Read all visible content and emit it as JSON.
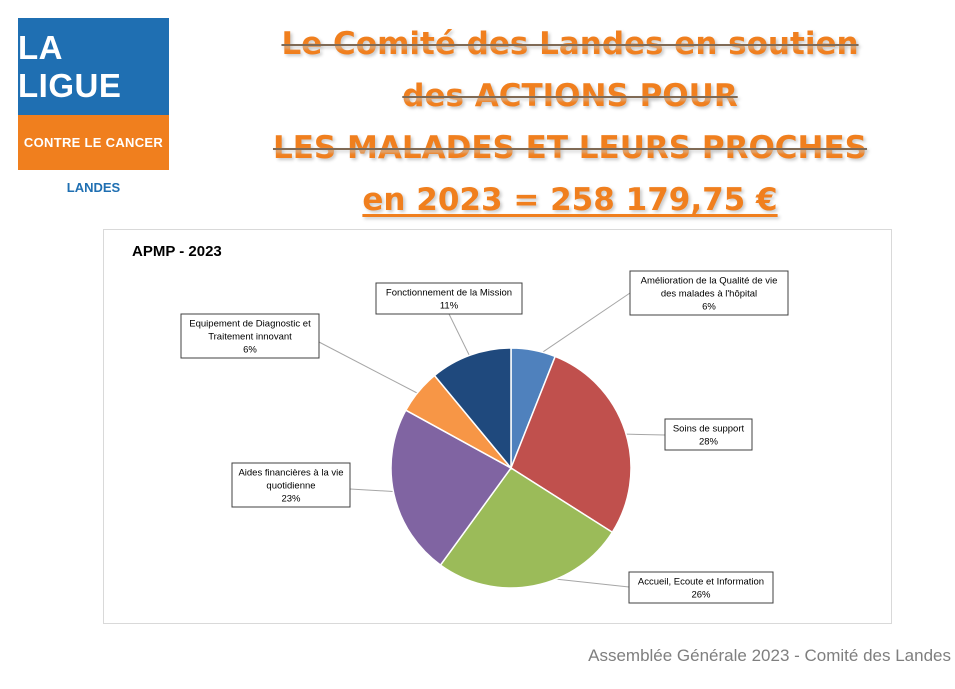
{
  "logo": {
    "top_text": "LA LIGUE",
    "bottom_text": "CONTRE LE CANCER",
    "sub_text": "LANDES",
    "colors": {
      "blue": "#1f6fb2",
      "orange": "#f07f1e"
    }
  },
  "title": {
    "line1": "Le Comité des Landes en soutien",
    "line2": "des ACTIONS POUR",
    "line3": "LES MALADES ET LEURS PROCHES",
    "line4": "en 2023 = 258 179,75 €",
    "color": "#f07f1e"
  },
  "footer": "Assemblée Générale 2023 - Comité des Landes",
  "chart_data": {
    "type": "pie",
    "title": "APMP - 2023",
    "legend": "none",
    "slices": [
      {
        "label": "Amélioration de la Qualité de vie des malades à l'hôpital",
        "lines": [
          "Amélioration de la Qualité de vie",
          "des malades à l'hôpital"
        ],
        "percent_label": "6%",
        "value": 6,
        "color": "#4f81bd"
      },
      {
        "label": "Soins de support",
        "lines": [
          "Soins de support"
        ],
        "percent_label": "28%",
        "value": 28,
        "color": "#c0504d"
      },
      {
        "label": "Accueil, Ecoute et Information",
        "lines": [
          "Accueil, Ecoute et Information"
        ],
        "percent_label": "26%",
        "value": 26,
        "color": "#9bbb59"
      },
      {
        "label": "Aides financières à la vie quotidienne",
        "lines": [
          "Aides financières à la vie",
          "quotidienne"
        ],
        "percent_label": "23%",
        "value": 23,
        "color": "#8064a2"
      },
      {
        "label": "Equipement de Diagnostic et Traitement innovant",
        "lines": [
          "Equipement de Diagnostic et",
          "Traitement innovant"
        ],
        "percent_label": "6%",
        "value": 6,
        "color": "#f79646"
      },
      {
        "label": "Fonctionnement de la Mission",
        "lines": [
          "Fonctionnement de la Mission"
        ],
        "percent_label": "11%",
        "value": 11,
        "color": "#1f497d"
      }
    ]
  }
}
